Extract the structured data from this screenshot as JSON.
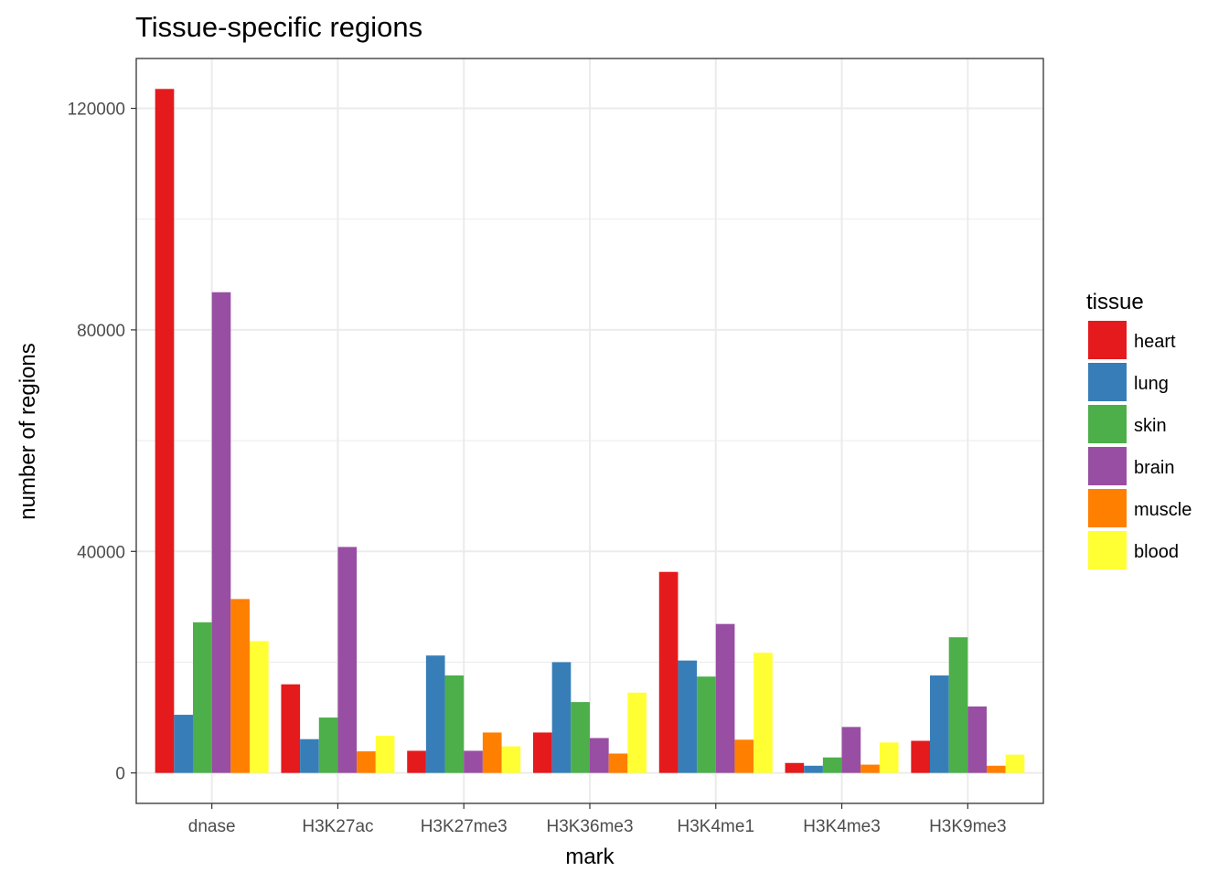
{
  "chart_data": {
    "type": "bar",
    "title": "Tissue-specific regions",
    "xlabel": "mark",
    "ylabel": "number of regions",
    "ylim": [
      -5500,
      129000
    ],
    "yticks": [
      0,
      40000,
      80000,
      120000
    ],
    "ytick_labels": [
      "0",
      "40000",
      "80000",
      "120000"
    ],
    "grid": true,
    "legend": {
      "title": "tissue",
      "placement": "right"
    },
    "categories": [
      "dnase",
      "H3K27ac",
      "H3K27me3",
      "H3K36me3",
      "H3K4me1",
      "H3K4me3",
      "H3K9me3"
    ],
    "series": [
      {
        "name": "heart",
        "color": "#E41A1C",
        "values": [
          123500,
          16000,
          4000,
          7300,
          36300,
          1800,
          5800
        ]
      },
      {
        "name": "lung",
        "color": "#377EB8",
        "values": [
          10500,
          6100,
          21200,
          20000,
          20300,
          1300,
          17600
        ]
      },
      {
        "name": "skin",
        "color": "#4DAF4A",
        "values": [
          27200,
          10000,
          17600,
          12800,
          17400,
          2800,
          24500
        ]
      },
      {
        "name": "brain",
        "color": "#984EA3",
        "values": [
          86800,
          40800,
          4000,
          6300,
          26900,
          8300,
          12000
        ]
      },
      {
        "name": "muscle",
        "color": "#FF7F00",
        "values": [
          31400,
          3900,
          7300,
          3500,
          6000,
          1500,
          1300
        ]
      },
      {
        "name": "blood",
        "color": "#FFFF33",
        "values": [
          23800,
          6700,
          4800,
          14500,
          21700,
          5500,
          3300
        ]
      }
    ]
  }
}
